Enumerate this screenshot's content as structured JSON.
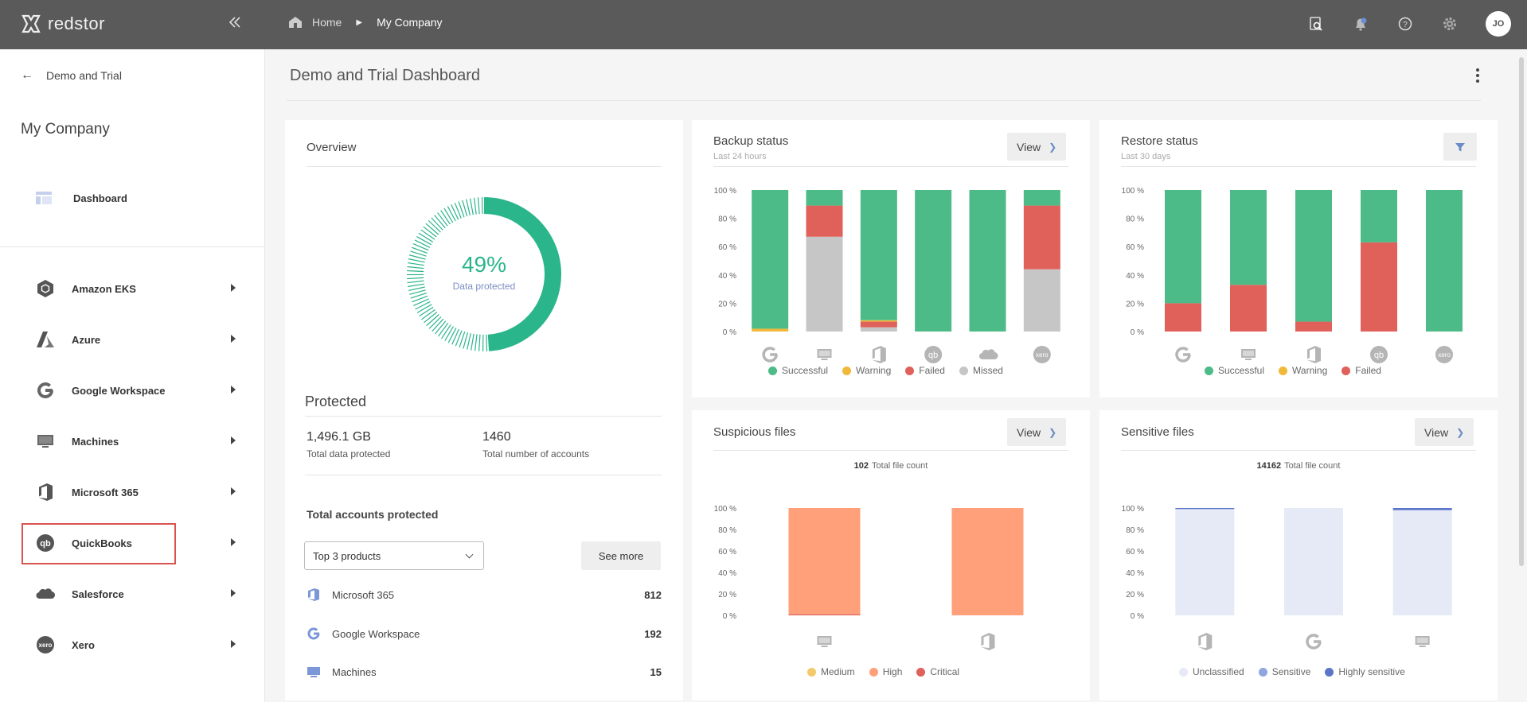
{
  "app": {
    "brand": "redstor"
  },
  "breadcrumb": {
    "home": "Home",
    "current": "My Company"
  },
  "user": {
    "initials": "JO"
  },
  "sidebar": {
    "back_label": "Demo and Trial",
    "company": "My Company",
    "dashboard_label": "Dashboard",
    "items": [
      {
        "label": "Amazon EKS",
        "icon": "amazon-eks-icon"
      },
      {
        "label": "Azure",
        "icon": "azure-icon"
      },
      {
        "label": "Google Workspace",
        "icon": "google-icon"
      },
      {
        "label": "Machines",
        "icon": "monitor-icon"
      },
      {
        "label": "Microsoft 365",
        "icon": "office-icon"
      },
      {
        "label": "QuickBooks",
        "icon": "quickbooks-icon"
      },
      {
        "label": "Salesforce",
        "icon": "salesforce-icon"
      },
      {
        "label": "Xero",
        "icon": "xero-icon"
      }
    ]
  },
  "page": {
    "title": "Demo and Trial Dashboard"
  },
  "overview": {
    "title": "Overview",
    "percent": "49%",
    "percent_label": "Data protected",
    "protected_heading": "Protected",
    "total_data": "1,496.1 GB",
    "total_data_label": "Total data protected",
    "total_accounts": "1460",
    "total_accounts_label": "Total number of accounts",
    "accounts_heading": "Total accounts protected",
    "select_value": "Top 3 products",
    "see_more": "See more",
    "accounts": [
      {
        "name": "Microsoft 365",
        "count": "812"
      },
      {
        "name": "Google Workspace",
        "count": "192"
      },
      {
        "name": "Machines",
        "count": "15"
      }
    ]
  },
  "backup": {
    "title": "Backup status",
    "subtitle": "Last 24 hours",
    "view": "View"
  },
  "restore": {
    "title": "Restore status",
    "subtitle": "Last 30 days"
  },
  "suspicious": {
    "title": "Suspicious files",
    "view": "View",
    "count": "102",
    "count_label": "Total file count"
  },
  "sensitive": {
    "title": "Sensitive files",
    "view": "View",
    "count": "14162",
    "count_label": "Total file count"
  },
  "colors": {
    "successful": "#4cbb87",
    "warning": "#f0b93a",
    "failed": "#e0605a",
    "missed": "#c6c6c6",
    "medium": "#f3c96a",
    "high": "#ffa07a",
    "critical": "#e0605a",
    "unclassified": "#e6eaf6",
    "sensitive": "#8fa6e0",
    "highly_sensitive": "#5b76c9"
  },
  "chart_data": [
    {
      "type": "bar",
      "title": "Backup status",
      "stacked": true,
      "categories": [
        "Google Workspace",
        "Machines",
        "Microsoft 365",
        "QuickBooks",
        "Salesforce",
        "Xero"
      ],
      "ylim": [
        0,
        100
      ],
      "yticks": [
        "0 %",
        "20 %",
        "40 %",
        "60 %",
        "80 %",
        "100 %"
      ],
      "series": [
        {
          "name": "Missed",
          "values": [
            0,
            67,
            3,
            0,
            0,
            44
          ]
        },
        {
          "name": "Failed",
          "values": [
            0,
            22,
            4,
            0,
            0,
            45
          ]
        },
        {
          "name": "Warning",
          "values": [
            2,
            0,
            1,
            0,
            0,
            0
          ]
        },
        {
          "name": "Successful",
          "values": [
            98,
            11,
            92,
            100,
            100,
            11
          ]
        }
      ]
    },
    {
      "type": "bar",
      "title": "Restore status",
      "stacked": true,
      "categories": [
        "Google Workspace",
        "Machines",
        "Microsoft 365",
        "QuickBooks",
        "Xero"
      ],
      "ylim": [
        0,
        100
      ],
      "yticks": [
        "0 %",
        "20 %",
        "40 %",
        "60 %",
        "80 %",
        "100 %"
      ],
      "series": [
        {
          "name": "Failed",
          "values": [
            20,
            33,
            7,
            63,
            0
          ]
        },
        {
          "name": "Warning",
          "values": [
            0,
            0,
            0,
            0,
            0
          ]
        },
        {
          "name": "Successful",
          "values": [
            80,
            67,
            93,
            37,
            100
          ]
        }
      ]
    },
    {
      "type": "bar",
      "title": "Suspicious files",
      "stacked": true,
      "categories": [
        "Machines",
        "Microsoft 365"
      ],
      "ylim": [
        0,
        100
      ],
      "yticks": [
        "0 %",
        "20 %",
        "40 %",
        "60 %",
        "80 %",
        "100 %"
      ],
      "series": [
        {
          "name": "Medium",
          "values": [
            0,
            0
          ]
        },
        {
          "name": "Critical",
          "values": [
            1,
            0
          ]
        },
        {
          "name": "High",
          "values": [
            99,
            100
          ]
        }
      ]
    },
    {
      "type": "bar",
      "title": "Sensitive files",
      "stacked": true,
      "categories": [
        "Microsoft 365",
        "Google Workspace",
        "Machines"
      ],
      "ylim": [
        0,
        100
      ],
      "yticks": [
        "0 %",
        "20 %",
        "40 %",
        "60 %",
        "80 %",
        "100 %"
      ],
      "series": [
        {
          "name": "Unclassified",
          "values": [
            99,
            100,
            98
          ]
        },
        {
          "name": "Sensitive",
          "values": [
            0,
            0,
            0
          ]
        },
        {
          "name": "Highly sensitive",
          "values": [
            1,
            0,
            2
          ]
        }
      ]
    }
  ]
}
